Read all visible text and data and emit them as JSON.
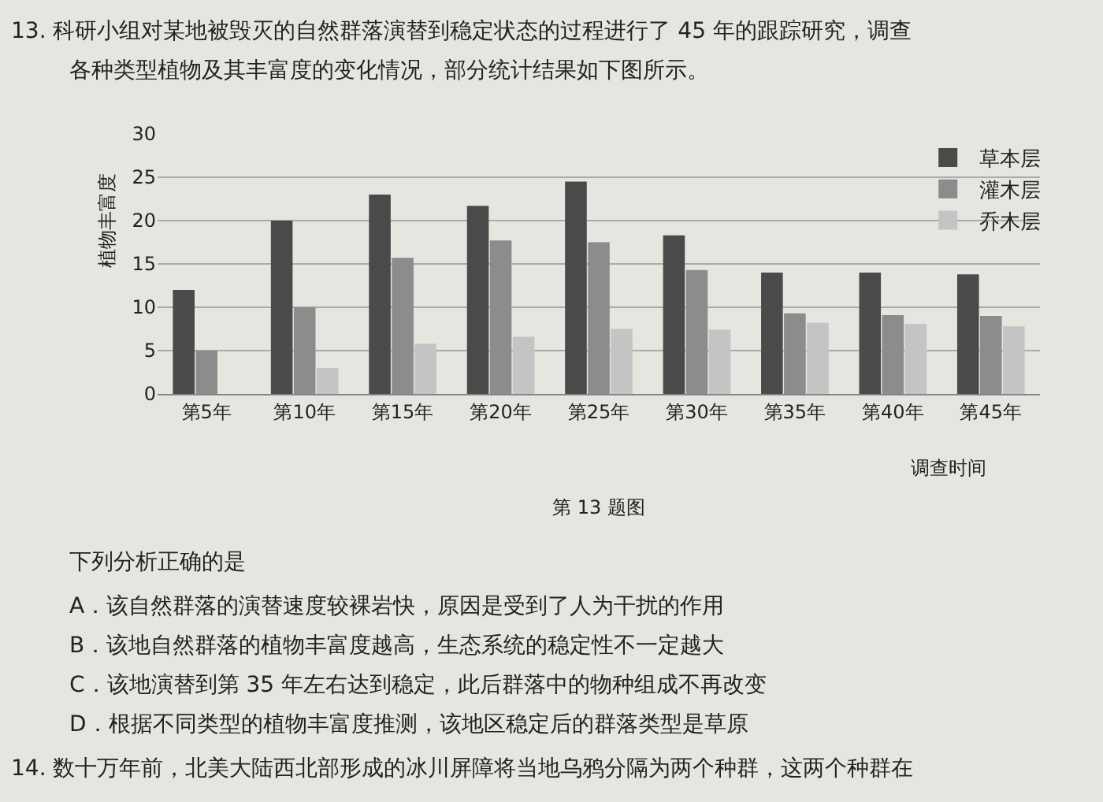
{
  "chart_data": {
    "type": "bar",
    "title": "第 13 题图",
    "xlabel": "调查时间",
    "ylabel": "植物丰富度",
    "categories": [
      "第5年",
      "第10年",
      "第15年",
      "第20年",
      "第25年",
      "第30年",
      "第35年",
      "第40年",
      "第45年"
    ],
    "series": [
      {
        "name": "草本层",
        "color": "#4a4a4a",
        "values": [
          12,
          20,
          23,
          21.7,
          24.5,
          18.3,
          14,
          14,
          13.8
        ]
      },
      {
        "name": "灌木层",
        "color": "#8c8c8c",
        "values": [
          5,
          10,
          15.7,
          17.7,
          17.5,
          14.3,
          9.3,
          9.1,
          9
        ]
      },
      {
        "name": "乔木层",
        "color": "#c4c4c4",
        "values": [
          null,
          3,
          5.8,
          6.6,
          7.5,
          7.4,
          8.2,
          8.1,
          7.8
        ]
      }
    ],
    "ylim": [
      0,
      30
    ],
    "yticks": [
      0,
      5,
      10,
      15,
      20,
      25,
      30
    ],
    "grid": "y",
    "legend": "top right",
    "annotations": [
      "13. 科研小组对某地被毁灭的自然群落演替到稳定状态的过程进行了 45 年的跟踪研究，调查",
      "各种类型植物及其丰富度的变化情况，部分统计结果如下图所示。",
      "下列分析正确的是",
      "A．该自然群落的演替速度较裸岩快，原因是受到了人为干扰的作用",
      "B．该地自然群落的植物丰富度越高，生态系统的稳定性不一定越大",
      "C．该地演替到第 35 年左右达到稳定，此后群落中的物种组成不再改变",
      "D．根据不同类型的植物丰富度推测，该地区稳定后的群落类型是草原",
      "14. 数十万年前，北美大陆西北部形成的冰川屏障将当地乌鸦分隔为两个种群，这两个种群在"
    ]
  }
}
